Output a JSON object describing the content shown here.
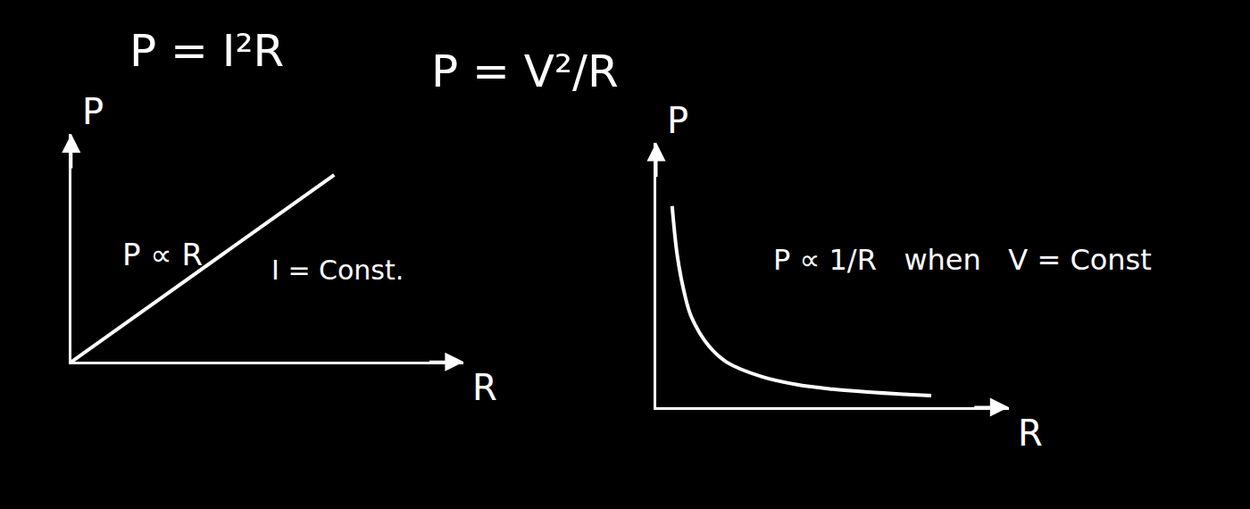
{
  "chart_data": [
    {
      "type": "line",
      "title": "P = I²R",
      "x_label": "R",
      "y_label": "P",
      "x": [
        0,
        6.7
      ],
      "values": [
        0,
        8.2
      ],
      "color": "#ffffff",
      "xlim": [
        0,
        10
      ],
      "ylim": [
        0,
        10
      ],
      "tick_labels": false,
      "annotations": [
        "P ∝ R",
        "I = Const."
      ]
    },
    {
      "type": "line",
      "title": "P = V²/R",
      "x_label": "R",
      "y_label": "P",
      "x": [
        0.45,
        0.6,
        0.8,
        1,
        1.5,
        2,
        3,
        4,
        5,
        6,
        7,
        7.8
      ],
      "values": [
        7.6,
        5.7,
        4.3,
        3.4,
        2.3,
        1.7,
        1.15,
        0.85,
        0.68,
        0.57,
        0.49,
        0.44
      ],
      "color": "#ffffff",
      "xlim": [
        0,
        10
      ],
      "ylim": [
        0,
        10
      ],
      "tick_labels": false,
      "annotations": [
        "P ∝ 1/R   when   V = Const"
      ]
    }
  ]
}
